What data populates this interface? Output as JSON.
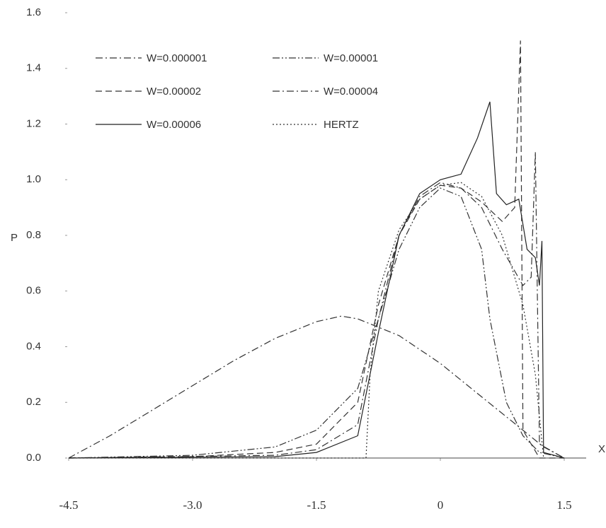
{
  "chart_data": {
    "type": "line",
    "x_label": "X",
    "y_label": "P",
    "xlim": [
      -4.5,
      1.5
    ],
    "ylim": [
      0,
      1.6
    ],
    "xticks": [
      -4.5,
      {
        "value": -3,
        "label": "-3.0"
      },
      -1.5,
      0,
      1.5
    ],
    "yticks": [
      {
        "value": 0,
        "label": "0.0"
      },
      0.2,
      0.4,
      0.6,
      0.8,
      {
        "value": 1,
        "label": "1.0"
      },
      1.2,
      1.4,
      1.6
    ],
    "series": [
      {
        "name": "W=0.000001",
        "color": "#333333",
        "dash": "dashdot",
        "x": [
          -4.5,
          -4,
          -3.5,
          -3,
          -2.5,
          -2,
          -1.5,
          -1.2,
          -1,
          -0.5,
          0,
          0.5,
          1,
          1.25,
          1.5
        ],
        "values": [
          0,
          0.08,
          0.17,
          0.26,
          0.35,
          0.43,
          0.49,
          0.51,
          0.5,
          0.44,
          0.34,
          0.22,
          0.1,
          0.04,
          0
        ]
      },
      {
        "name": "W=0.00001",
        "color": "#333333",
        "dash": "dashdotdot",
        "x": [
          -4.5,
          -3,
          -2,
          -1.5,
          -1,
          -0.75,
          -0.5,
          -0.25,
          0,
          0.25,
          0.5,
          0.6,
          0.8,
          1,
          1.2,
          1.5
        ],
        "values": [
          0,
          0.01,
          0.04,
          0.1,
          0.25,
          0.5,
          0.75,
          0.9,
          0.97,
          0.94,
          0.75,
          0.5,
          0.2,
          0.08,
          0.02,
          0
        ]
      },
      {
        "name": "W=0.00002",
        "color": "#333333",
        "dash": "dashed",
        "x": [
          -4.5,
          -3,
          -2,
          -1.5,
          -1,
          -0.75,
          -0.5,
          -0.25,
          0,
          0.25,
          0.5,
          0.75,
          0.9,
          0.97,
          1,
          1.2,
          1.5
        ],
        "values": [
          0,
          0.005,
          0.02,
          0.05,
          0.2,
          0.55,
          0.8,
          0.93,
          0.98,
          0.97,
          0.92,
          0.85,
          0.9,
          1.5,
          0.1,
          0,
          0
        ]
      },
      {
        "name": "W=0.00004",
        "color": "#333333",
        "dash": "dashdot",
        "x": [
          -4.5,
          -2,
          -1.5,
          -1,
          -0.75,
          -0.5,
          -0.25,
          0,
          0.25,
          0.5,
          0.75,
          1,
          1.1,
          1.15,
          1.2,
          1.5
        ],
        "values": [
          0,
          0.01,
          0.03,
          0.12,
          0.5,
          0.8,
          0.94,
          0.99,
          0.97,
          0.9,
          0.75,
          0.62,
          0.65,
          1.1,
          0.05,
          0
        ]
      },
      {
        "name": "W=0.00006",
        "color": "#222222",
        "dash": "solid",
        "x": [
          -4.5,
          -2,
          -1.5,
          -1,
          -0.75,
          -0.5,
          -0.25,
          0,
          0.25,
          0.45,
          0.6,
          0.68,
          0.8,
          0.95,
          1.05,
          1.15,
          1.2,
          1.23,
          1.25,
          1.5
        ],
        "values": [
          0,
          0.005,
          0.02,
          0.08,
          0.45,
          0.8,
          0.95,
          1,
          1.02,
          1.15,
          1.28,
          0.95,
          0.91,
          0.93,
          0.75,
          0.72,
          0.62,
          0.78,
          0.02,
          0
        ]
      },
      {
        "name": "HERTZ",
        "color": "#333333",
        "dash": "dotted",
        "x": [
          -4.5,
          -0.9,
          -0.85,
          -0.75,
          -0.5,
          -0.25,
          0,
          0.25,
          0.5,
          0.75,
          1,
          1.15,
          1.25
        ],
        "values": [
          0,
          0,
          0.3,
          0.6,
          0.82,
          0.93,
          0.98,
          0.99,
          0.94,
          0.8,
          0.55,
          0.3,
          0
        ]
      }
    ]
  }
}
